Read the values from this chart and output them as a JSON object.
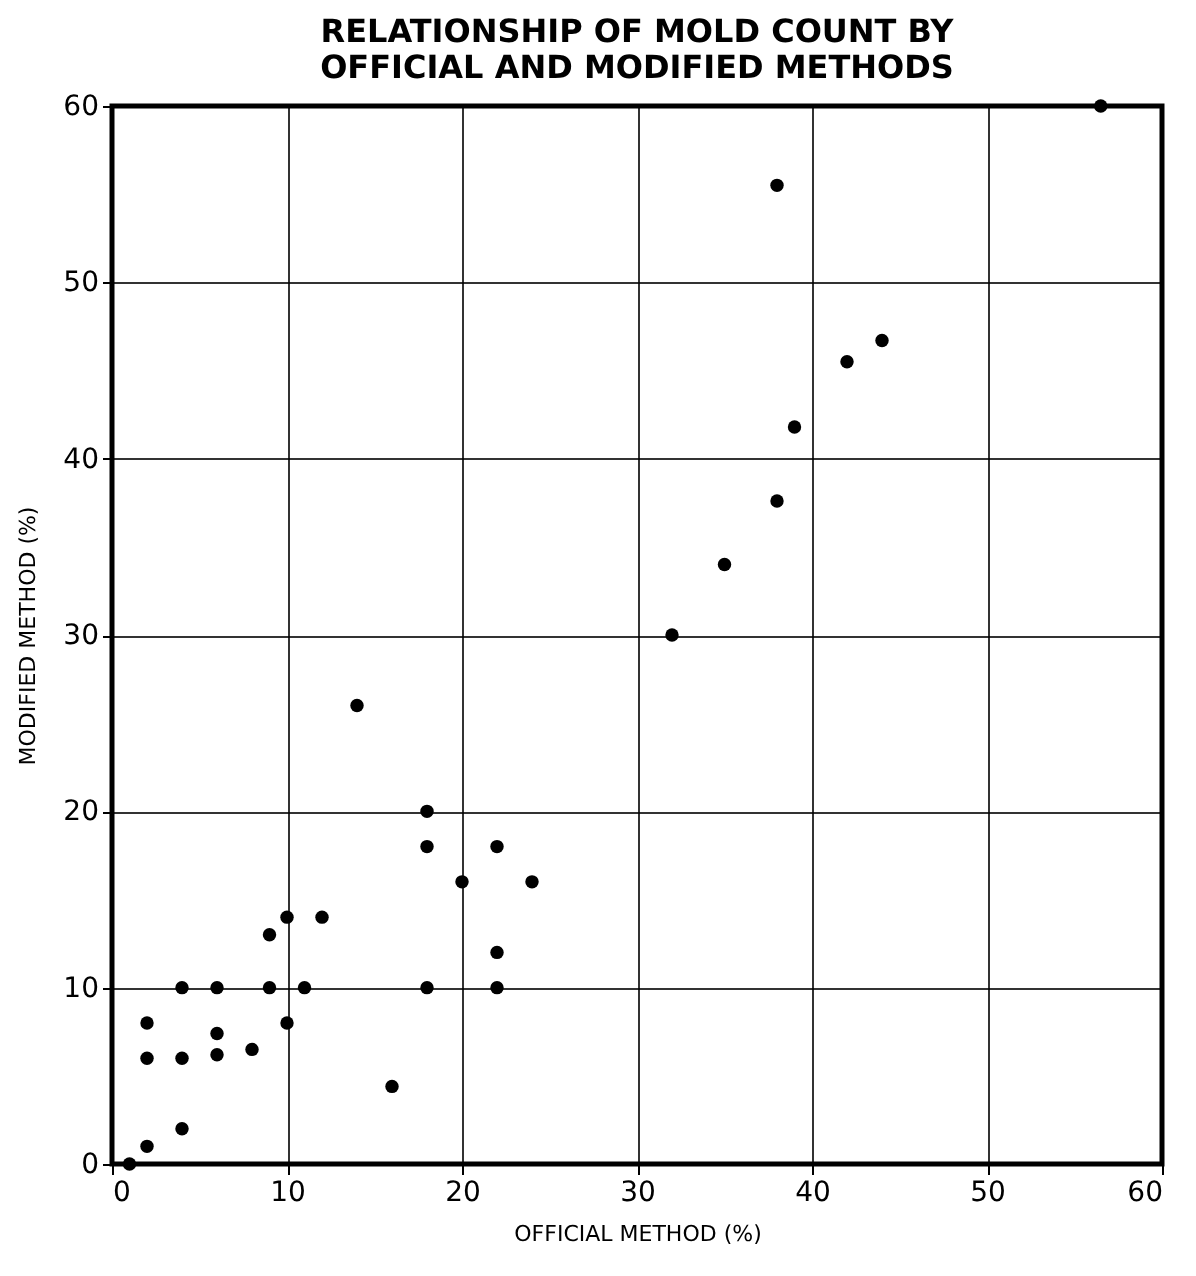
{
  "chart_data": {
    "type": "scatter",
    "title": [
      "RELATIONSHIP OF MOLD COUNT BY",
      "OFFICIAL AND MODIFIED METHODS"
    ],
    "xlabel": "OFFICIAL METHOD (%)",
    "ylabel": "MODIFIED METHOD (%)",
    "x": [
      1,
      2,
      2,
      2,
      4,
      4,
      4,
      6,
      6,
      6,
      8,
      9,
      9,
      10,
      10,
      11,
      12,
      14,
      16,
      18,
      18,
      18,
      20,
      22,
      22,
      22,
      24,
      32,
      35,
      38,
      38,
      39,
      42,
      44,
      56.5
    ],
    "values": [
      0,
      1,
      6,
      8,
      2,
      6,
      10,
      6.2,
      7.4,
      10,
      6.5,
      10,
      13,
      8,
      14,
      10,
      14,
      26,
      4.4,
      10,
      18,
      20,
      16,
      10,
      12,
      18,
      16,
      30,
      34,
      37.6,
      55.5,
      41.8,
      45.5,
      46.7,
      60
    ],
    "color": "#000000",
    "marker": "circle",
    "xlim": [
      0,
      60
    ],
    "ylim": [
      0,
      60
    ],
    "xticks": [
      0,
      10,
      20,
      30,
      40,
      50,
      60
    ],
    "yticks": [
      0,
      10,
      20,
      30,
      40,
      50,
      60
    ],
    "grid": true
  }
}
